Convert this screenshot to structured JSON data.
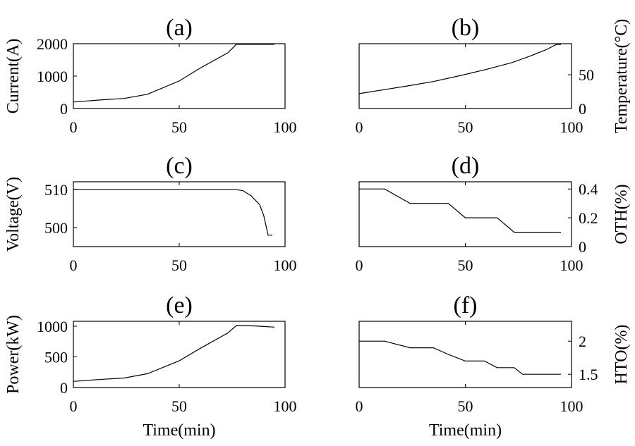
{
  "figure": {
    "xlabel": "Time(min)"
  },
  "chart_data": [
    {
      "type": "line",
      "title": "(a)",
      "xlabel": "",
      "ylabel": "Current(A)",
      "yaxis_side": "left",
      "xlim": [
        0,
        100
      ],
      "ylim": [
        0,
        2000
      ],
      "xticks": [
        0,
        50,
        100
      ],
      "xtick_labels": [
        "0",
        "50",
        "100"
      ],
      "yticks": [
        0,
        1000,
        2000
      ],
      "ytick_labels": [
        "0",
        "1000",
        "2000"
      ],
      "series": [
        {
          "name": "Current",
          "x": [
            0,
            12,
            24,
            35,
            50,
            60,
            73,
            77,
            95
          ],
          "y": [
            200,
            260,
            310,
            440,
            850,
            1250,
            1720,
            1980,
            1980
          ]
        }
      ]
    },
    {
      "type": "line",
      "title": "(b)",
      "xlabel": "",
      "ylabel": "Temperature(°C)",
      "yaxis_side": "right",
      "xlim": [
        0,
        100
      ],
      "ylim": [
        0,
        96
      ],
      "xticks": [
        0,
        50,
        100
      ],
      "xtick_labels": [
        "0",
        "50",
        "100"
      ],
      "yticks": [
        0,
        50
      ],
      "ytick_labels": [
        "0",
        "50"
      ],
      "series": [
        {
          "name": "Temperature",
          "x": [
            0,
            12,
            24,
            35,
            48,
            60,
            72,
            80,
            88,
            93,
            95
          ],
          "y": [
            22,
            28,
            34,
            40,
            49,
            58,
            68,
            77,
            87,
            95,
            95
          ]
        }
      ]
    },
    {
      "type": "line",
      "title": "(c)",
      "xlabel": "",
      "ylabel": "Voltage(V)",
      "yaxis_side": "left",
      "xlim": [
        0,
        100
      ],
      "ylim": [
        495,
        512
      ],
      "xticks": [
        0,
        50,
        100
      ],
      "xtick_labels": [
        "0",
        "50",
        "100"
      ],
      "yticks": [
        500,
        510
      ],
      "ytick_labels": [
        "500",
        "510"
      ],
      "series": [
        {
          "name": "Voltage",
          "x": [
            0,
            76,
            80,
            84,
            88,
            90,
            91,
            92,
            94
          ],
          "y": [
            510,
            510,
            509.7,
            508.3,
            506,
            503,
            500.5,
            498,
            498
          ]
        }
      ]
    },
    {
      "type": "line",
      "title": "(d)",
      "xlabel": "",
      "ylabel": "OTH(%)",
      "yaxis_side": "right",
      "xlim": [
        0,
        100
      ],
      "ylim": [
        0,
        0.45
      ],
      "xticks": [
        0,
        50,
        100
      ],
      "xtick_labels": [
        "0",
        "50",
        "100"
      ],
      "yticks": [
        0,
        0.2,
        0.4
      ],
      "ytick_labels": [
        "0",
        "0.2",
        "0.4"
      ],
      "series": [
        {
          "name": "OTH",
          "x": [
            0,
            12,
            24,
            42,
            50,
            65,
            73,
            95
          ],
          "y": [
            0.4,
            0.4,
            0.3,
            0.3,
            0.2,
            0.2,
            0.1,
            0.1
          ]
        }
      ]
    },
    {
      "type": "line",
      "title": "(e)",
      "xlabel": "Time(min)",
      "ylabel": "Power(kW)",
      "yaxis_side": "left",
      "xlim": [
        0,
        100
      ],
      "ylim": [
        0,
        1080
      ],
      "xticks": [
        0,
        50,
        100
      ],
      "xtick_labels": [
        "0",
        "50",
        "100"
      ],
      "yticks": [
        0,
        500,
        1000
      ],
      "ytick_labels": [
        "0",
        "500",
        "1000"
      ],
      "series": [
        {
          "name": "Power",
          "x": [
            0,
            12,
            24,
            35,
            50,
            60,
            73,
            77,
            85,
            95
          ],
          "y": [
            100,
            130,
            155,
            225,
            435,
            640,
            890,
            1010,
            1005,
            985
          ]
        }
      ]
    },
    {
      "type": "line",
      "title": "(f)",
      "xlabel": "Time(min)",
      "ylabel": "HTO(%)",
      "yaxis_side": "right",
      "xlim": [
        0,
        100
      ],
      "ylim": [
        1.3,
        2.3
      ],
      "xticks": [
        0,
        50,
        100
      ],
      "xtick_labels": [
        "0",
        "50",
        "100"
      ],
      "yticks": [
        1.5,
        2
      ],
      "ytick_labels": [
        "1.5",
        "2"
      ],
      "series": [
        {
          "name": "HTO",
          "x": [
            0,
            12,
            24,
            35,
            42,
            50,
            59,
            65,
            73,
            77,
            95
          ],
          "y": [
            2.0,
            2.0,
            1.9,
            1.9,
            1.8,
            1.7,
            1.7,
            1.6,
            1.6,
            1.5,
            1.5
          ]
        }
      ]
    }
  ]
}
